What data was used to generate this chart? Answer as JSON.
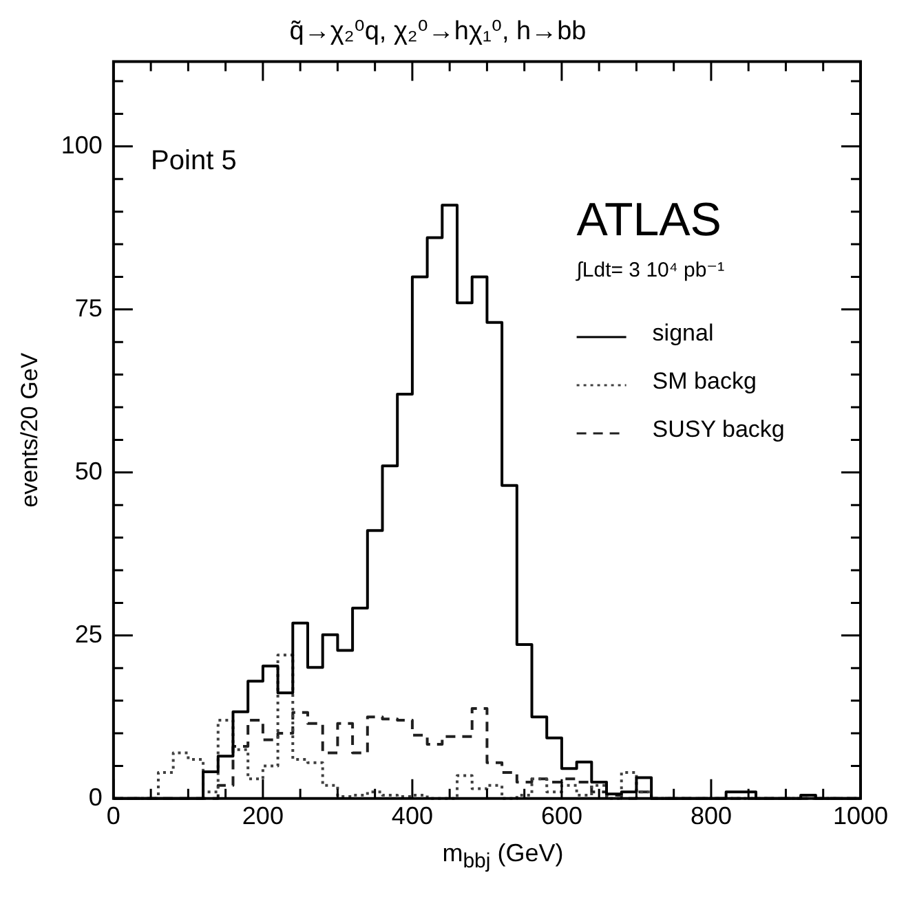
{
  "chart_data": {
    "type": "histogram",
    "title": "q̃→χ₂⁰q, χ₂⁰→hχ₁⁰, h→bb",
    "xlabel": "m$_{bbj}$ (GeV)",
    "ylabel": "events/20 GeV",
    "annotations": [
      "Point 5",
      "ATLAS",
      "∫Ldt= 3 10⁴ pb⁻¹"
    ],
    "bins": [
      0,
      20,
      40,
      60,
      80,
      100,
      120,
      140,
      160,
      180,
      200,
      220,
      240,
      260,
      280,
      300,
      320,
      340,
      360,
      380,
      400,
      420,
      440,
      460,
      480,
      500,
      520,
      540,
      560,
      580,
      600,
      620,
      640,
      660,
      680,
      700,
      720,
      740,
      760,
      780,
      800,
      820,
      840,
      860,
      880,
      900,
      920,
      940,
      960,
      980,
      1000
    ],
    "series": [
      {
        "name": "signal",
        "color": "#000000",
        "line_style": "solid",
        "values": [
          0,
          0,
          0,
          0,
          0,
          0,
          4.1,
          6.5,
          13.3,
          18,
          20.3,
          16.2,
          26.9,
          20.1,
          25.1,
          22.7,
          29.2,
          41.1,
          51,
          62,
          80,
          86,
          91,
          76,
          80,
          73,
          48,
          23.6,
          12.5,
          9.3,
          4.6,
          5.6,
          2.5,
          0.7,
          1,
          3.2,
          0,
          0,
          0,
          0,
          0,
          1,
          1,
          0,
          0,
          0,
          0.5,
          0,
          0,
          0
        ]
      },
      {
        "name": "SM backg",
        "color": "#404040",
        "line_style": "dotted",
        "values": [
          0,
          0,
          0,
          4,
          7,
          6,
          1,
          12,
          7.5,
          3,
          5,
          22,
          6,
          5.5,
          2,
          0.3,
          0.5,
          1,
          0.5,
          0.3,
          0.5,
          0,
          0,
          3.5,
          1.5,
          2,
          0,
          0.5,
          3,
          1,
          2,
          0.5,
          2,
          0,
          4,
          1,
          0,
          0,
          0,
          0,
          0,
          0,
          0,
          0,
          0,
          0,
          0,
          0,
          0,
          0
        ]
      },
      {
        "name": "SUSY backg",
        "color": "#202020",
        "line_style": "dashed",
        "values": [
          0,
          0,
          0,
          0,
          0,
          0,
          0,
          2,
          8,
          12,
          9,
          10,
          13.2,
          11.5,
          7,
          11.5,
          7,
          12.5,
          12.2,
          12,
          9.7,
          8.3,
          9.5,
          9.5,
          13.8,
          5.5,
          4,
          2.5,
          3,
          2.5,
          3,
          2.5,
          1,
          0.5,
          0,
          1,
          0,
          0,
          0,
          0,
          0,
          0,
          0,
          0,
          0,
          0,
          0,
          0,
          0,
          0
        ]
      }
    ],
    "xlim": [
      0,
      1000
    ],
    "xticks": [
      0,
      {
        "value": 50,
        "label": null
      },
      {
        "value": 100,
        "label": null
      },
      {
        "value": 150,
        "label": null
      },
      200,
      {
        "value": 250,
        "label": null
      },
      {
        "value": 300,
        "label": null
      },
      {
        "value": 350,
        "label": null
      },
      400,
      {
        "value": 450,
        "label": null
      },
      {
        "value": 500,
        "label": null
      },
      {
        "value": 550,
        "label": null
      },
      600,
      {
        "value": 650,
        "label": null
      },
      {
        "value": 700,
        "label": null
      },
      {
        "value": 750,
        "label": null
      },
      800,
      {
        "value": 850,
        "label": null
      },
      {
        "value": 900,
        "label": null
      },
      {
        "value": 950,
        "label": null
      },
      1000
    ],
    "ylim": [
      0,
      113
    ],
    "yticks": [
      0,
      {
        "value": 5,
        "label": null
      },
      {
        "value": 10,
        "label": null
      },
      {
        "value": 15,
        "label": null
      },
      {
        "value": 20,
        "label": null
      },
      25,
      {
        "value": 30,
        "label": null
      },
      {
        "value": 35,
        "label": null
      },
      {
        "value": 40,
        "label": null
      },
      {
        "value": 45,
        "label": null
      },
      50,
      {
        "value": 55,
        "label": null
      },
      {
        "value": 60,
        "label": null
      },
      {
        "value": 65,
        "label": null
      },
      {
        "value": 70,
        "label": null
      },
      75,
      {
        "value": 80,
        "label": null
      },
      {
        "value": 85,
        "label": null
      },
      {
        "value": 90,
        "label": null
      },
      {
        "value": 95,
        "label": null
      },
      100,
      {
        "value": 105,
        "label": null
      },
      {
        "value": 110,
        "label": null
      }
    ],
    "grid": false,
    "legend": "top right"
  }
}
